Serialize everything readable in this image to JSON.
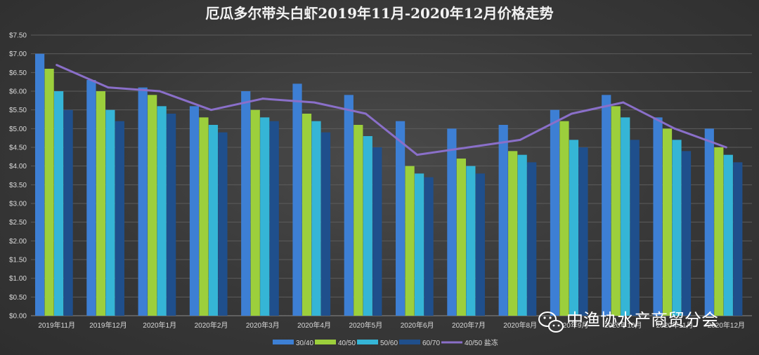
{
  "chart_data": {
    "type": "bar",
    "title": "厄瓜多尔带头白虾2019年11月-2020年12月价格走势",
    "xlabel": "",
    "ylabel": "",
    "ylim": [
      0,
      7.5
    ],
    "ytick_step": 0.5,
    "ytick_labels": [
      "$0.00",
      "$0.50",
      "$1.00",
      "$1.50",
      "$2.00",
      "$2.50",
      "$3.00",
      "$3.50",
      "$4.00",
      "$4.50",
      "$5.00",
      "$5.50",
      "$6.00",
      "$6.50",
      "$7.00",
      "$7.50"
    ],
    "grid": true,
    "legend_position": "bottom",
    "categories": [
      "2019年11月",
      "2019年12月",
      "2020年1月",
      "2020年2月",
      "2020年3月",
      "2020年4月",
      "2020年5月",
      "2020年6月",
      "2020年7月",
      "2020年8月",
      "2020年9月",
      "2020年10月",
      "2020年11月",
      "2020年12月"
    ],
    "series": [
      {
        "name": "30/40",
        "kind": "bar",
        "color": "#3d7fd4",
        "values": [
          7.0,
          6.3,
          6.1,
          5.6,
          6.0,
          6.2,
          5.9,
          5.2,
          5.0,
          5.1,
          5.5,
          5.9,
          5.3,
          5.0
        ]
      },
      {
        "name": "40/50",
        "kind": "bar",
        "color": "#9ccf3c",
        "values": [
          6.6,
          6.0,
          5.9,
          5.3,
          5.5,
          5.4,
          5.1,
          4.0,
          4.2,
          4.4,
          5.2,
          5.6,
          5.0,
          4.5
        ]
      },
      {
        "name": "50/60",
        "kind": "bar",
        "color": "#35b5d6",
        "values": [
          6.0,
          5.5,
          5.6,
          5.1,
          5.3,
          5.2,
          4.8,
          3.8,
          4.0,
          4.3,
          4.7,
          5.3,
          4.7,
          4.3
        ]
      },
      {
        "name": "60/70",
        "kind": "bar",
        "color": "#1f4f8c",
        "values": [
          5.5,
          5.2,
          5.4,
          4.9,
          5.2,
          4.9,
          4.5,
          3.7,
          3.8,
          4.1,
          4.5,
          4.7,
          4.4,
          4.1
        ]
      },
      {
        "name": "40/50 盐冻",
        "kind": "line",
        "color": "#8a6fc9",
        "values": [
          6.7,
          6.1,
          6.0,
          5.5,
          5.8,
          5.7,
          5.4,
          4.3,
          4.5,
          4.7,
          5.4,
          5.7,
          5.0,
          4.5
        ]
      }
    ]
  },
  "watermark": {
    "text": "中渔协水产商贸分会",
    "icon": "wechat-icon"
  }
}
